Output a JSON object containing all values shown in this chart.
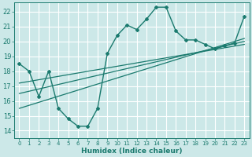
{
  "xlabel": "Humidex (Indice chaleur)",
  "background_color": "#cce8e8",
  "grid_color": "#ffffff",
  "line_color": "#1a7a6e",
  "xlim": [
    -0.5,
    23.5
  ],
  "ylim": [
    13.5,
    22.6
  ],
  "xticks": [
    0,
    1,
    2,
    3,
    4,
    5,
    6,
    7,
    8,
    9,
    10,
    11,
    12,
    13,
    14,
    15,
    16,
    17,
    18,
    19,
    20,
    21,
    22,
    23
  ],
  "yticks": [
    14,
    15,
    16,
    17,
    18,
    19,
    20,
    21,
    22
  ],
  "main_x": [
    0,
    1,
    2,
    3,
    4,
    5,
    6,
    7,
    8,
    9,
    10,
    11,
    12,
    13,
    14,
    15,
    16,
    17,
    18,
    19,
    20,
    21,
    22,
    23
  ],
  "main_y": [
    18.5,
    18.0,
    16.3,
    18.0,
    15.5,
    14.8,
    14.3,
    14.3,
    15.5,
    19.2,
    20.4,
    21.1,
    20.8,
    21.5,
    22.3,
    22.3,
    20.7,
    20.1,
    20.1,
    19.8,
    19.5,
    19.7,
    19.9,
    21.7
  ],
  "reg_lines": [
    [
      [
        0,
        23
      ],
      [
        15.5,
        20.2
      ]
    ],
    [
      [
        0,
        23
      ],
      [
        16.5,
        20.0
      ]
    ],
    [
      [
        0,
        23
      ],
      [
        17.2,
        19.8
      ]
    ]
  ]
}
